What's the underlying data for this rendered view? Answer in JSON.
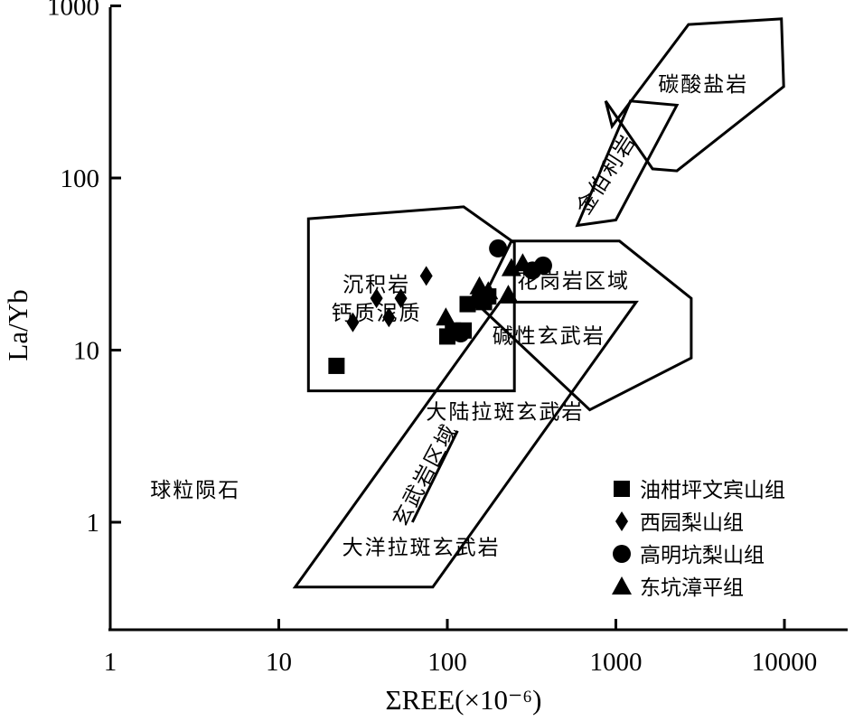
{
  "chart_data": {
    "type": "scatter",
    "x_scale": "log",
    "y_scale": "log",
    "xlim": [
      1,
      20000
    ],
    "ylim": [
      0.3,
      1100
    ],
    "xlabel": "ΣREE(×10⁻⁶)",
    "ylabel": "La/Yb",
    "x_ticks": [
      {
        "value": 1,
        "label": "1"
      },
      {
        "value": 10,
        "label": "10"
      },
      {
        "value": 100,
        "label": "100"
      },
      {
        "value": 1000,
        "label": "1000"
      },
      {
        "value": 10000,
        "label": "10000"
      }
    ],
    "y_ticks": [
      {
        "value": 1,
        "label": "1"
      },
      {
        "value": 10,
        "label": "10"
      },
      {
        "value": 100,
        "label": "100"
      },
      {
        "value": 1000,
        "label": "1000"
      }
    ],
    "grid": false,
    "legend_position": "bottom-right",
    "regions": [
      {
        "name": "碳酸盐岩",
        "polygon": [
          [
            950,
            200
          ],
          [
            2700,
            780
          ],
          [
            9600,
            840
          ],
          [
            9900,
            340
          ],
          [
            2300,
            110
          ],
          [
            1650,
            113
          ],
          [
            870,
            280
          ]
        ]
      },
      {
        "name": "金伯利岩",
        "polygon": [
          [
            590,
            53
          ],
          [
            1000,
            57
          ],
          [
            2300,
            265
          ],
          [
            1220,
            280
          ]
        ]
      },
      {
        "name": "沉积岩钙质泥质",
        "polygon": [
          [
            15,
            58
          ],
          [
            125,
            68
          ],
          [
            250,
            42
          ],
          [
            250,
            5.8
          ],
          [
            15,
            5.8
          ]
        ]
      },
      {
        "name": "花岗岩区域",
        "polygon": [
          [
            240,
            43
          ],
          [
            1050,
            43
          ],
          [
            2800,
            20
          ],
          [
            2800,
            9
          ],
          [
            700,
            4.5
          ],
          [
            155,
            18
          ]
        ]
      },
      {
        "name": "大陆拉斑玄武岩",
        "polygon": [
          [
            12.5,
            0.42
          ],
          [
            82,
            0.42
          ],
          [
            1320,
            19
          ],
          [
            205,
            19
          ]
        ]
      },
      {
        "name": "玄武岩区域",
        "polygon": [
          [
            62,
            1.0
          ],
          [
            115,
            3.4
          ]
        ],
        "line": true
      }
    ],
    "region_labels": [
      {
        "text": "碳酸盐岩",
        "x": 3300,
        "y": 320
      },
      {
        "text": "金伯利岩",
        "x": 950,
        "y": 100,
        "rotate": -57
      },
      {
        "text": "沉积岩",
        "x": 38,
        "y": 22
      },
      {
        "text": "钙质泥质",
        "x": 38,
        "y": 15
      },
      {
        "text": "花岗岩区域",
        "x": 560,
        "y": 23
      },
      {
        "text": "碱性玄武岩",
        "x": 400,
        "y": 11
      },
      {
        "text": "大陆拉斑玄武岩",
        "x": 220,
        "y": 4.0
      },
      {
        "text": "玄武岩区域",
        "x": 80,
        "y": 1.8,
        "rotate": -62
      },
      {
        "text": "大洋拉斑玄武岩",
        "x": 70,
        "y": 0.65
      },
      {
        "text": "球粒陨石",
        "x": 3.2,
        "y": 1.4
      }
    ],
    "series": [
      {
        "name": "油柑坪文宾山组",
        "marker": "square",
        "points": [
          [
            22,
            8.1
          ],
          [
            100,
            12
          ],
          [
            108,
            13
          ],
          [
            125,
            13
          ],
          [
            132,
            18.5
          ],
          [
            165,
            19
          ],
          [
            175,
            20.5
          ]
        ]
      },
      {
        "name": "西园梨山组",
        "marker": "diamond",
        "points": [
          [
            27.5,
            14.5
          ],
          [
            38,
            20
          ],
          [
            45,
            15.5
          ],
          [
            53,
            20
          ],
          [
            75,
            27
          ]
        ]
      },
      {
        "name": "高明坑梨山组",
        "marker": "circle",
        "points": [
          [
            200,
            39
          ],
          [
            320,
            29
          ],
          [
            370,
            31
          ],
          [
            120,
            12.5
          ]
        ]
      },
      {
        "name": "东坑漳平组",
        "marker": "triangle",
        "points": [
          [
            98,
            15.5
          ],
          [
            145,
            19.5
          ],
          [
            155,
            23.5
          ],
          [
            175,
            22
          ],
          [
            230,
            21
          ],
          [
            240,
            30
          ],
          [
            280,
            32
          ]
        ]
      }
    ]
  }
}
